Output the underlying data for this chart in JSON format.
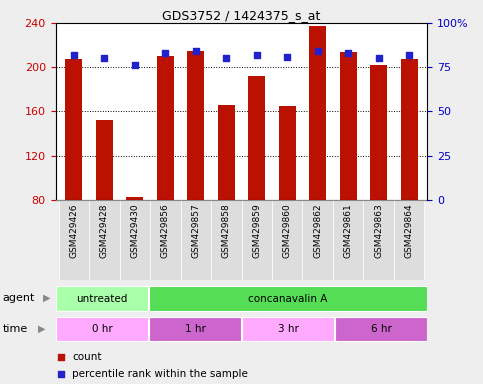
{
  "title": "GDS3752 / 1424375_s_at",
  "samples": [
    "GSM429426",
    "GSM429428",
    "GSM429430",
    "GSM429856",
    "GSM429857",
    "GSM429858",
    "GSM429859",
    "GSM429860",
    "GSM429862",
    "GSM429861",
    "GSM429863",
    "GSM429864"
  ],
  "count_values": [
    207,
    152,
    82,
    210,
    215,
    166,
    192,
    165,
    237,
    214,
    202,
    207
  ],
  "percentile_values": [
    82,
    80,
    76,
    83,
    84,
    80,
    82,
    81,
    84,
    83,
    80,
    82
  ],
  "ylim_left": [
    80,
    240
  ],
  "ylim_right": [
    0,
    100
  ],
  "yticks_left": [
    80,
    120,
    160,
    200,
    240
  ],
  "yticks_right": [
    0,
    25,
    50,
    75,
    100
  ],
  "ytick_labels_right": [
    "0",
    "25",
    "50",
    "75",
    "100%"
  ],
  "bar_color": "#bb1100",
  "dot_color": "#2222cc",
  "bg_color": "#eeeeee",
  "plot_bg": "#ffffff",
  "agent_row": [
    {
      "label": "untreated",
      "start": 0,
      "end": 3,
      "color": "#aaffaa"
    },
    {
      "label": "concanavalin A",
      "start": 3,
      "end": 12,
      "color": "#55dd55"
    }
  ],
  "time_row": [
    {
      "label": "0 hr",
      "start": 0,
      "end": 3,
      "color": "#ffaaff"
    },
    {
      "label": "1 hr",
      "start": 3,
      "end": 6,
      "color": "#cc66cc"
    },
    {
      "label": "3 hr",
      "start": 6,
      "end": 9,
      "color": "#ffaaff"
    },
    {
      "label": "6 hr",
      "start": 9,
      "end": 12,
      "color": "#cc66cc"
    }
  ],
  "legend_items": [
    {
      "label": "count",
      "color": "#bb1100"
    },
    {
      "label": "percentile rank within the sample",
      "color": "#2222cc"
    }
  ],
  "tick_color_left": "#cc0000",
  "tick_color_right": "#0000cc"
}
